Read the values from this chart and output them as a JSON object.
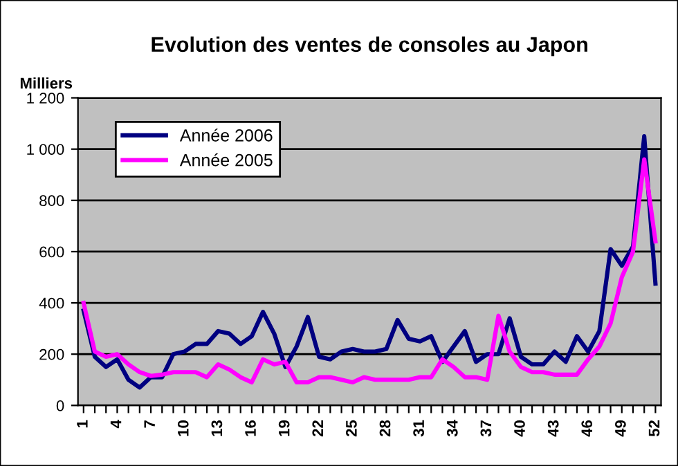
{
  "chart_data": {
    "type": "line",
    "title": "Evolution des ventes de consoles au Japon",
    "ylabel": "Milliers",
    "categories": [
      "1",
      null,
      null,
      "4",
      null,
      null,
      "7",
      null,
      null,
      "10",
      null,
      null,
      "13",
      null,
      null,
      "16",
      null,
      null,
      "19",
      null,
      null,
      "22",
      null,
      null,
      "25",
      null,
      null,
      "28",
      null,
      null,
      "31",
      null,
      null,
      "34",
      null,
      null,
      "37",
      null,
      null,
      "40",
      null,
      null,
      "43",
      null,
      null,
      "46",
      null,
      null,
      "49",
      null,
      null,
      "52"
    ],
    "series": [
      {
        "name": "Année 2006",
        "color": "#000080",
        "values": [
          370,
          190,
          150,
          180,
          100,
          70,
          110,
          110,
          200,
          210,
          240,
          240,
          290,
          280,
          240,
          270,
          365,
          280,
          150,
          230,
          345,
          190,
          180,
          210,
          220,
          210,
          210,
          220,
          333,
          260,
          250,
          270,
          170,
          230,
          290,
          170,
          200,
          200,
          340,
          190,
          160,
          160,
          210,
          170,
          270,
          210,
          290,
          610,
          545,
          620,
          1050,
          475
        ]
      },
      {
        "name": "Année 2005",
        "color": "#ff00ff",
        "values": [
          400,
          210,
          190,
          200,
          160,
          130,
          115,
          120,
          130,
          130,
          130,
          110,
          160,
          140,
          110,
          90,
          180,
          160,
          170,
          90,
          90,
          110,
          110,
          100,
          90,
          110,
          100,
          100,
          100,
          100,
          110,
          110,
          180,
          150,
          110,
          110,
          100,
          350,
          210,
          150,
          130,
          130,
          120,
          120,
          120,
          180,
          230,
          320,
          500,
          600,
          960,
          640
        ]
      }
    ],
    "ylim": [
      0,
      1200
    ],
    "yticks": [
      0,
      200,
      400,
      600,
      800,
      {
        "value": 1000,
        "label": "1 000"
      },
      {
        "value": 1200,
        "label": "1 200"
      }
    ],
    "grid": "y",
    "legend": "top left",
    "marker": "none",
    "line_style": "solid"
  }
}
